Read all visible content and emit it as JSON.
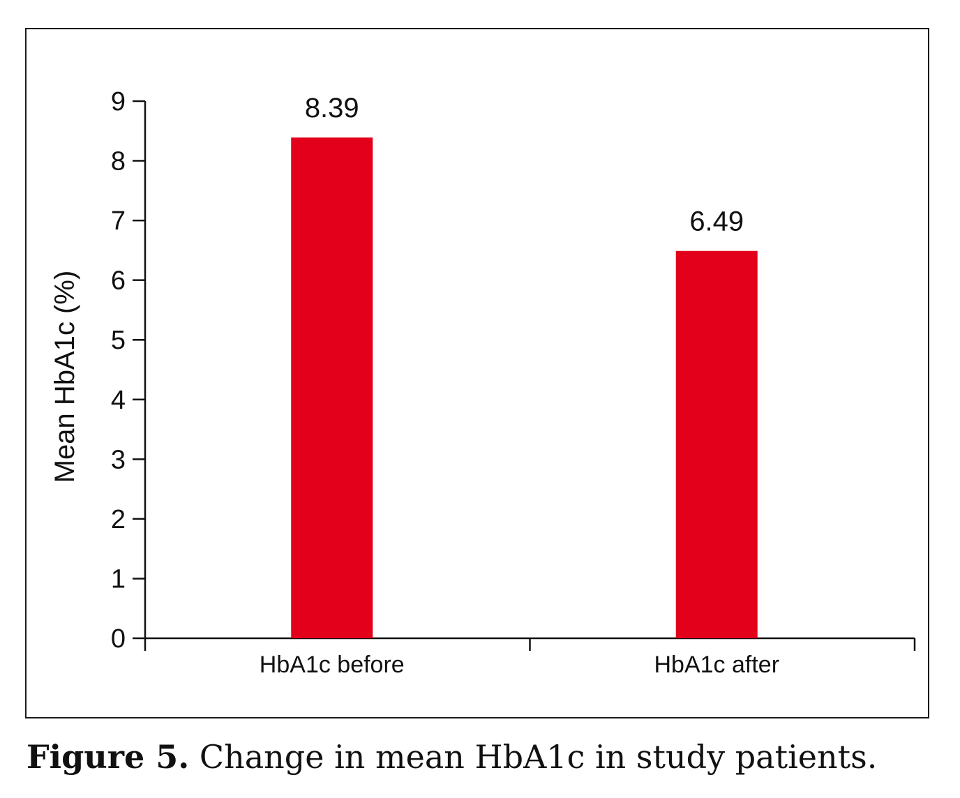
{
  "chart_data": {
    "type": "bar",
    "categories": [
      "HbA1c before",
      "HbA1c after"
    ],
    "values": [
      8.39,
      6.49
    ],
    "data_labels": [
      "8.39",
      "6.49"
    ],
    "ylabel": "Mean HbA1c (%)",
    "xlabel": "",
    "ylim": [
      0,
      9
    ],
    "yticks": [
      0,
      1,
      2,
      3,
      4,
      5,
      6,
      7,
      8,
      9
    ],
    "grid": false,
    "bar_color": "#e2001a"
  },
  "caption": {
    "prefix": "Figure 5.",
    "text": " Change in mean HbA1c in study patients."
  }
}
